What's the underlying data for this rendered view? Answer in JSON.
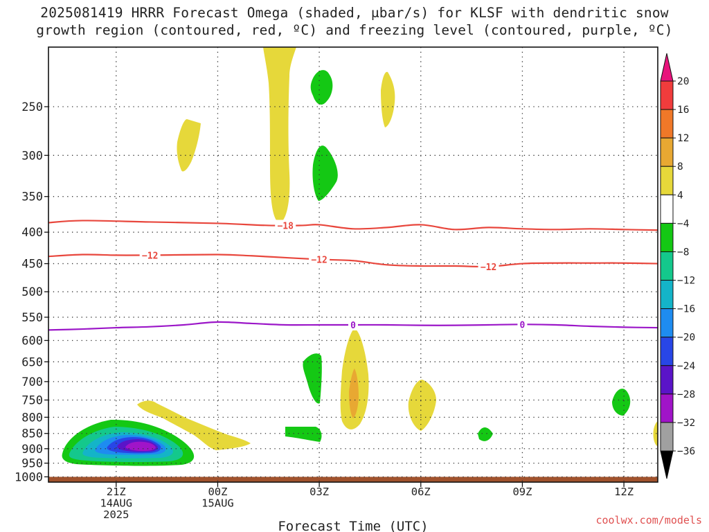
{
  "header": {
    "title_line1": "2025081419 HRRR Forecast Omega (shaded, μbar/s) for KLSF with dendritic snow",
    "title_line2": "growth region (contoured, red, ºC) and freezing level (contoured, purple, ºC)"
  },
  "footer": {
    "credit": "coolwx.com/models"
  },
  "colors": {
    "dendritic_contour": "#e8463c",
    "freezing_contour": "#9b16c8",
    "ground": "#a0522d"
  },
  "chart_data": {
    "type": "heatmap",
    "title": "2025081419 HRRR Forecast Omega (shaded, μbar/s) for KLSF with dendritic snow growth region (contoured, red, ºC) and freezing level (contoured, purple, ºC)",
    "xlabel": "Forecast Time (UTC)",
    "ylabel": "",
    "x_unit": "hours from 2025-08-14 19Z",
    "xlim": [
      0,
      18
    ],
    "ylim": [
      1020,
      200
    ],
    "y_scale": "log",
    "grid": true,
    "x_ticks": [
      {
        "x": 2,
        "lines": [
          "21Z",
          "14AUG",
          "2025"
        ]
      },
      {
        "x": 5,
        "lines": [
          "00Z",
          "15AUG"
        ]
      },
      {
        "x": 8,
        "lines": [
          "03Z"
        ]
      },
      {
        "x": 11,
        "lines": [
          "06Z"
        ]
      },
      {
        "x": 14,
        "lines": [
          "09Z"
        ]
      },
      {
        "x": 17,
        "lines": [
          "12Z"
        ]
      }
    ],
    "y_ticks": [
      250,
      300,
      350,
      400,
      450,
      500,
      550,
      600,
      650,
      700,
      750,
      800,
      850,
      900,
      950,
      1000
    ],
    "colorbar": {
      "levels": [
        -36,
        -32,
        -28,
        -24,
        -20,
        -16,
        -12,
        -8,
        -4,
        4,
        8,
        12,
        16,
        20
      ],
      "labels": [
        "20",
        "16",
        "12",
        "8",
        "4",
        "−4",
        "−8",
        "−12",
        "−16",
        "−20",
        "−24",
        "−28",
        "−32",
        "−36"
      ],
      "colors": [
        {
          "range": "> 20",
          "color": "#e8147c"
        },
        {
          "range": "16 – 20",
          "color": "#f03c3c"
        },
        {
          "range": "12 – 16",
          "color": "#f07828"
        },
        {
          "range": "8 – 12",
          "color": "#e8a832"
        },
        {
          "range": "4 – 8",
          "color": "#e6d83a"
        },
        {
          "range": "−4 – 4",
          "color": "#ffffff"
        },
        {
          "range": "−8 – −4",
          "color": "#14c814"
        },
        {
          "range": "−12 – −8",
          "color": "#14c88c"
        },
        {
          "range": "−16 – −12",
          "color": "#14b4c8"
        },
        {
          "range": "−20 – −16",
          "color": "#1e8cf0"
        },
        {
          "range": "−24 – −20",
          "color": "#2846e6"
        },
        {
          "range": "−28 – −24",
          "color": "#5a14c8"
        },
        {
          "range": "−32 – −28",
          "color": "#a014c8"
        },
        {
          "range": "−36 – −32",
          "color": "#a0a0a0"
        },
        {
          "range": "< −36",
          "color": "#000000"
        }
      ]
    },
    "contours": [
      {
        "name": "−18 ºC",
        "label": "−18",
        "color": "#e8463c",
        "points": [
          [
            0,
            386
          ],
          [
            1,
            383
          ],
          [
            3,
            385
          ],
          [
            5,
            387
          ],
          [
            6.5,
            390
          ],
          [
            7.5,
            390
          ],
          [
            8,
            389
          ],
          [
            9,
            395
          ],
          [
            10,
            393
          ],
          [
            11,
            389
          ],
          [
            12,
            396
          ],
          [
            13,
            393
          ],
          [
            14,
            395
          ],
          [
            15,
            396
          ],
          [
            16,
            395
          ],
          [
            17,
            396
          ],
          [
            18,
            397
          ]
        ],
        "label_x": [
          7
        ]
      },
      {
        "name": "−12 ºC",
        "label": "−12",
        "color": "#e8463c",
        "points": [
          [
            0,
            438
          ],
          [
            1,
            435
          ],
          [
            2,
            436
          ],
          [
            3,
            436
          ],
          [
            5,
            435
          ],
          [
            6,
            437
          ],
          [
            7,
            440
          ],
          [
            8,
            443
          ],
          [
            9,
            445
          ],
          [
            10,
            452
          ],
          [
            11,
            454
          ],
          [
            12,
            454
          ],
          [
            13,
            455
          ],
          [
            14,
            450
          ],
          [
            15,
            449
          ],
          [
            16,
            449
          ],
          [
            17,
            449
          ],
          [
            18,
            450
          ]
        ],
        "label_x": [
          3,
          8,
          13
        ]
      },
      {
        "name": "0 ºC",
        "label": "0",
        "color": "#9b16c8",
        "points": [
          [
            0,
            577
          ],
          [
            1,
            575
          ],
          [
            2,
            572
          ],
          [
            3,
            570
          ],
          [
            4,
            566
          ],
          [
            5,
            560
          ],
          [
            6,
            563
          ],
          [
            7,
            566
          ],
          [
            8,
            566
          ],
          [
            9,
            566
          ],
          [
            10,
            566
          ],
          [
            11,
            567
          ],
          [
            12,
            567
          ],
          [
            13,
            566
          ],
          [
            14,
            565
          ],
          [
            15,
            566
          ],
          [
            16,
            569
          ],
          [
            17,
            571
          ],
          [
            18,
            572
          ]
        ],
        "label_x": [
          9,
          14
        ]
      }
    ],
    "ground_level_hPa": 1000
  }
}
